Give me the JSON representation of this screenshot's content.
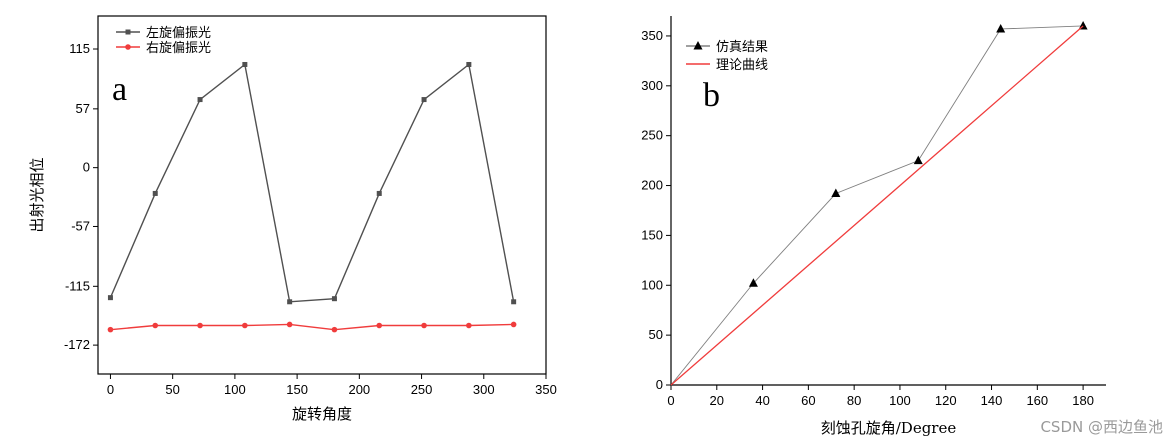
{
  "chart_data": [
    {
      "panel_label": "a",
      "type": "line",
      "xlabel": "旋转角度",
      "ylabel": "出射光相位",
      "xlim": [
        -10,
        350
      ],
      "ylim": [
        -200,
        147
      ],
      "xticks": [
        0,
        50,
        100,
        150,
        200,
        250,
        300,
        350
      ],
      "yticks": [
        115,
        57,
        0,
        -57,
        -115,
        -172
      ],
      "legend": "top-left",
      "series": [
        {
          "name": "左旋偏振光",
          "color": "#505050",
          "marker": "square",
          "x": [
            0,
            36,
            72,
            108,
            144,
            180,
            216,
            252,
            288,
            324
          ],
          "y": [
            -126,
            -25,
            66,
            100,
            -130,
            -127,
            -25,
            66,
            100,
            -130
          ]
        },
        {
          "name": "右旋偏振光",
          "color": "#f03c3c",
          "marker": "circle",
          "x": [
            0,
            36,
            72,
            108,
            144,
            180,
            216,
            252,
            288,
            324
          ],
          "y": [
            -157,
            -153,
            -153,
            -153,
            -152,
            -157,
            -153,
            -153,
            -153,
            -152
          ]
        }
      ]
    },
    {
      "panel_label": "b",
      "type": "line",
      "xlabel": "刻蚀孔旋角/Degree",
      "ylabel": "",
      "xlim": [
        0,
        190
      ],
      "ylim": [
        0,
        370
      ],
      "xticks": [
        0,
        20,
        40,
        60,
        80,
        100,
        120,
        140,
        160,
        180
      ],
      "yticks": [
        0,
        50,
        100,
        150,
        200,
        250,
        300,
        350
      ],
      "legend": "top-left",
      "series": [
        {
          "name": "仿真结果",
          "color": "#808080",
          "marker": "triangle",
          "x": [
            0,
            36,
            72,
            108,
            144,
            180
          ],
          "y": [
            0,
            102,
            192,
            225,
            357,
            360
          ]
        },
        {
          "name": "理论曲线",
          "color": "#f03c3c",
          "marker": "none",
          "x": [
            0,
            180
          ],
          "y": [
            0,
            360
          ]
        }
      ]
    }
  ],
  "watermark": "CSDN @西边鱼池"
}
